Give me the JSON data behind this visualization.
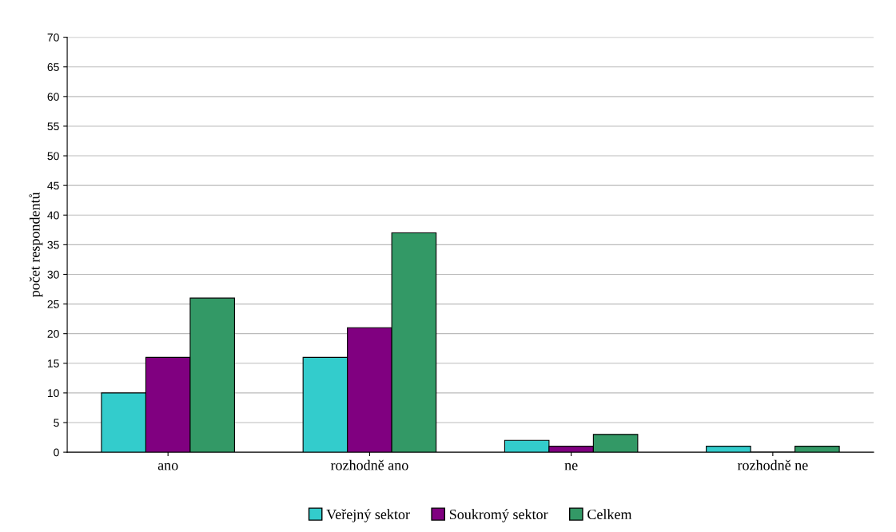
{
  "chart_data": {
    "type": "bar",
    "ylabel": "počet respondentů",
    "categories": [
      "ano",
      "rozhodně ano",
      "ne",
      "rozhodně ne"
    ],
    "series": [
      {
        "name": "Veřejný sektor",
        "color": "#33cccc",
        "values": [
          10,
          16,
          2,
          1
        ]
      },
      {
        "name": "Soukromý sektor",
        "color": "#800080",
        "values": [
          16,
          21,
          1,
          0
        ]
      },
      {
        "name": "Celkem",
        "color": "#339966",
        "values": [
          26,
          37,
          3,
          1
        ]
      }
    ],
    "ylim": [
      0,
      70
    ],
    "yticks": [
      0,
      5,
      10,
      15,
      20,
      25,
      30,
      35,
      40,
      45,
      50,
      55,
      60,
      65,
      70
    ],
    "grid": "y",
    "legend": "bottom"
  }
}
